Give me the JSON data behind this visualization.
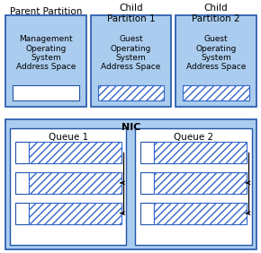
{
  "bg_color": "#ffffff",
  "light_blue": "#aaccee",
  "box_bg": "#c8dff0",
  "white": "#ffffff",
  "dark_blue": "#2255aa",
  "hatch_color": "#3366cc",
  "parent_label": "Parent Partition",
  "child1_label": "Child\nPartition 1",
  "child2_label": "Child\nPartition 2",
  "mgmt_text": "Management\nOperating\nSystem\nAddress Space",
  "guest_text": "Guest\nOperating\nSystem\nAddress Space",
  "nic_label": "NIC",
  "queue1_label": "Queue 1",
  "queue2_label": "Queue 2"
}
